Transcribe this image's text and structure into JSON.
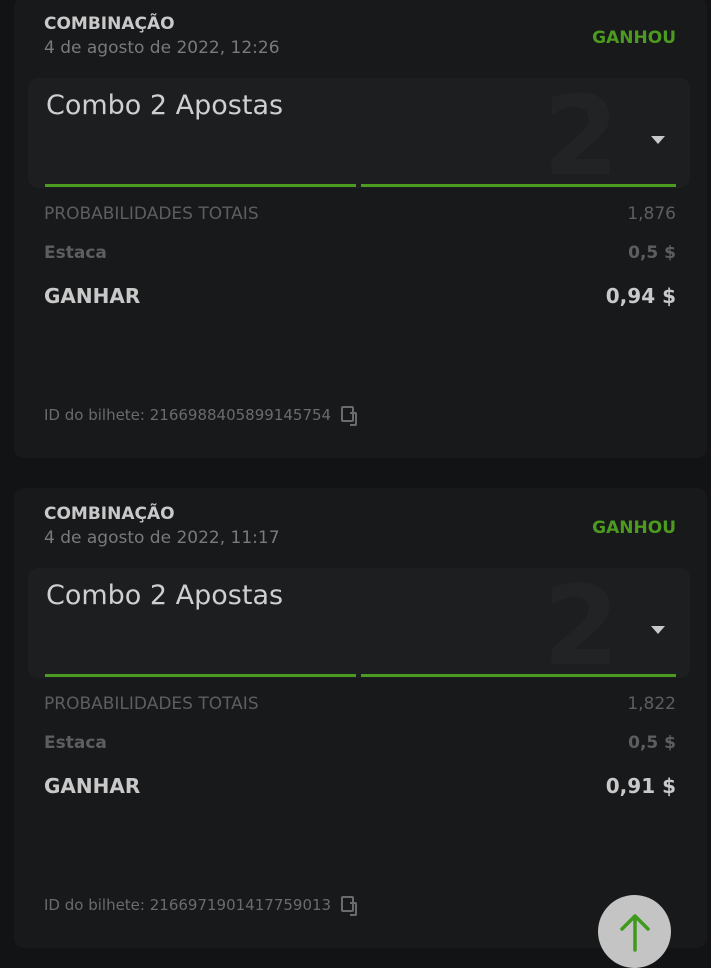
{
  "tickets": [
    {
      "type": "COMBINAÇÃO",
      "date": "4 de agosto de 2022, 12:26",
      "status": "GANHOU",
      "title": "Combo 2 Apostas",
      "count": "2",
      "odds_label": "PROBABILIDADES TOTAIS",
      "odds": "1,876",
      "stake_label": "Estaca",
      "stake": "0,5 $",
      "win_label": "GANHAR",
      "win": "0,94 $",
      "id_label": "ID do bilhete:",
      "id": "2166988405899145754"
    },
    {
      "type": "COMBINAÇÃO",
      "date": "4 de agosto de 2022, 11:17",
      "status": "GANHOU",
      "title": "Combo 2 Apostas",
      "count": "2",
      "odds_label": "PROBABILIDADES TOTAIS",
      "odds": "1,822",
      "stake_label": "Estaca",
      "stake": "0,5 $",
      "win_label": "GANHAR",
      "win": "0,91 $",
      "id_label": "ID do bilhete:",
      "id": "2166971901417759013"
    }
  ],
  "colors": {
    "accent": "#4c9a1f",
    "background": "#121315",
    "card": "#18191b"
  },
  "scroll_top_icon": "arrow-up-icon"
}
